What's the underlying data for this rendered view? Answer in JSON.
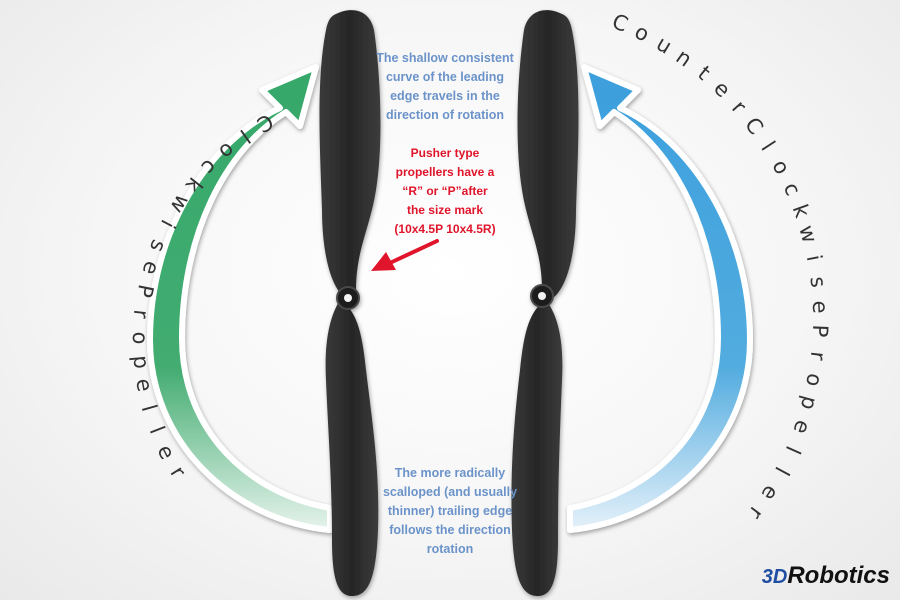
{
  "notes": {
    "leading_edge": [
      "The shallow consistent",
      "curve of the leading",
      "edge travels in the",
      "direction of rotation"
    ],
    "pusher": [
      "Pusher type",
      "propellers have a",
      "“R” or “P”after",
      "the size mark",
      "(10x4.5P  10x4.5R)"
    ],
    "trailing_edge": [
      "The more radically",
      "scalloped (and usually",
      "thinner) trailing edge",
      "follows the direction",
      "rotation"
    ]
  },
  "labels": {
    "clockwise": "Clockwise Propeller",
    "counter_clockwise": "Counter Clockwise Propeller"
  },
  "logo": {
    "mark": "3D",
    "text": "Robotics"
  },
  "colors": {
    "clockwise_arrow": "#3aa569",
    "counter_clockwise_arrow": "#3d9ddc",
    "propeller": "#2e2e2e",
    "blue_text": "#6b93c9",
    "red_text": "#e0142a",
    "pointer_arrow": "#e0142a"
  },
  "icons": {
    "left_arrow": "curved-arrow-clockwise-icon",
    "right_arrow": "curved-arrow-counterclockwise-icon",
    "pointer": "red-pointer-arrow-icon"
  }
}
